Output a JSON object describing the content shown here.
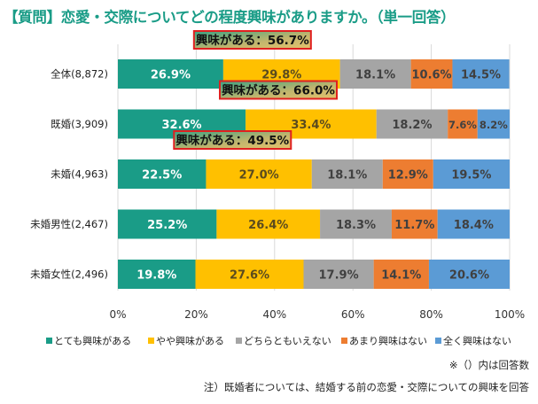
{
  "chart_data": {
    "type": "bar",
    "orientation": "horizontal",
    "stacked": true,
    "title": "【質問】恋愛・交際についてどの程度興味がありますか。（単一回答）",
    "categories": [
      "全体(8,872)",
      "既婚(3,909)",
      "未婚(4,963)",
      "未婚男性(2,467)",
      "未婚女性(2,496)"
    ],
    "series": [
      {
        "name": "とても興味がある",
        "color": "#1a9c87",
        "label_color": "#ffffff",
        "values": [
          26.9,
          32.6,
          22.5,
          25.2,
          19.8
        ]
      },
      {
        "name": "やや興味がある",
        "color": "#ffc000",
        "label_color": "#5a4b1e",
        "values": [
          29.8,
          33.4,
          27.0,
          26.4,
          27.6
        ]
      },
      {
        "name": "どちらともいえない",
        "color": "#a5a5a5",
        "label_color": "#404040",
        "values": [
          18.1,
          18.2,
          18.1,
          18.3,
          17.9
        ]
      },
      {
        "name": "あまり興味はない",
        "color": "#ed7d31",
        "label_color": "#404040",
        "values": [
          10.6,
          7.6,
          12.9,
          11.7,
          14.1
        ]
      },
      {
        "name": "全く興味はない",
        "color": "#5b9bd5",
        "label_color": "#404040",
        "values": [
          14.5,
          8.2,
          19.5,
          18.4,
          20.6
        ]
      }
    ],
    "data_label_suffix": "%",
    "xlim": [
      0,
      100
    ],
    "xticks": [
      "0%",
      "20%",
      "40%",
      "60%",
      "80%",
      "100%"
    ],
    "grid": true,
    "legend_position": "bottom",
    "annotations": [
      {
        "category_index": 0,
        "text": "興味がある：56.7%"
      },
      {
        "category_index": 1,
        "text": "興味がある：66.0%"
      },
      {
        "category_index": 2,
        "text": "興味がある：49.5%"
      }
    ],
    "annotation_border_color": "#e02020"
  },
  "notes": {
    "count_note": "※（）内は回答数",
    "married_note": "注）既婚者については、結婚する前の恋愛・交際についての興味を回答"
  }
}
